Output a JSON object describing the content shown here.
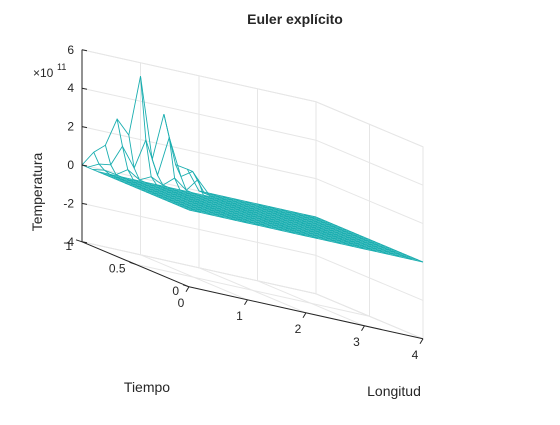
{
  "chart_data": {
    "type": "surface-mesh",
    "title": "Euler explícito",
    "xlabel": "Longitud",
    "ylabel": "Tiempo",
    "zlabel": "Temperatura",
    "zexponent": "11",
    "xlim": [
      0,
      4
    ],
    "ylim": [
      0,
      1
    ],
    "zlim": [
      -4,
      6
    ],
    "xticks": [
      "0",
      "1",
      "2",
      "3",
      "4"
    ],
    "yticks": [
      "0",
      "0.5",
      "1"
    ],
    "zticks": [
      "-4",
      "-2",
      "0",
      "2",
      "4",
      "6"
    ],
    "grid": true,
    "mesh_color": "#1aaeb0",
    "x_values": [
      0,
      0.2,
      0.4,
      0.6,
      0.8,
      1.0,
      1.2,
      1.4,
      1.6,
      1.8,
      2.0
    ],
    "t_values": [
      0,
      0.05,
      0.1,
      0.15,
      0.2,
      0.25,
      0.3,
      0.35,
      0.4,
      0.45,
      0.5,
      0.55,
      0.6,
      0.65,
      0.7,
      0.75,
      0.8,
      0.85,
      0.9,
      0.95,
      1.0
    ],
    "edge_x": 4,
    "temperature_e11": [
      [
        0,
        0,
        0,
        0,
        0,
        0,
        0,
        0,
        0,
        0,
        0
      ],
      [
        0,
        0,
        0,
        0,
        0,
        0,
        0,
        0,
        0,
        0,
        0
      ],
      [
        0,
        0,
        0,
        0,
        0,
        0,
        0,
        0,
        0,
        0,
        0
      ],
      [
        0,
        0,
        0,
        0,
        0,
        0,
        0,
        0,
        0,
        0,
        0
      ],
      [
        0,
        0,
        0,
        0,
        0,
        0,
        0,
        0,
        0,
        0,
        0
      ],
      [
        0,
        0,
        0,
        0,
        0,
        0,
        0,
        0,
        0,
        0,
        0
      ],
      [
        0,
        0,
        0,
        0,
        0,
        0,
        0,
        0,
        0,
        0,
        0
      ],
      [
        0,
        0,
        0,
        0,
        0,
        0,
        0,
        0,
        0,
        0,
        0
      ],
      [
        0,
        0,
        0,
        0,
        0,
        0,
        0,
        0,
        0,
        0,
        0
      ],
      [
        0,
        0,
        0,
        0,
        0,
        0,
        0,
        0,
        0,
        0,
        0
      ],
      [
        0,
        0,
        0,
        0,
        0,
        0,
        0,
        0,
        0,
        0,
        0
      ],
      [
        0,
        0,
        0,
        0,
        0,
        0,
        0,
        0,
        0,
        0,
        0
      ],
      [
        0,
        0,
        0,
        0,
        0,
        0,
        0,
        0,
        0,
        0,
        0
      ],
      [
        0,
        0,
        0,
        0,
        0,
        0,
        0,
        0,
        0,
        0,
        0
      ],
      [
        0,
        0,
        0,
        0,
        0,
        0,
        0,
        0,
        0,
        0,
        0
      ],
      [
        0,
        0,
        0,
        0,
        0,
        0,
        0,
        0,
        0,
        0,
        0
      ],
      [
        0,
        0,
        0,
        0,
        0,
        0,
        0,
        0,
        0,
        0,
        0
      ],
      [
        0,
        0,
        0,
        0,
        0,
        0,
        0,
        0,
        0,
        0,
        0
      ],
      [
        0,
        0.1,
        0,
        0.4,
        0,
        0.3,
        0,
        0.5,
        0,
        0.7,
        0
      ],
      [
        0,
        0.3,
        0.4,
        1.5,
        0.5,
        2.1,
        0.4,
        2.5,
        0.6,
        1.0,
        0
      ],
      [
        0,
        0.8,
        1.3,
        2.8,
        2.1,
        5.3,
        1.1,
        3.6,
        1.1,
        1.0,
        0
      ]
    ]
  }
}
